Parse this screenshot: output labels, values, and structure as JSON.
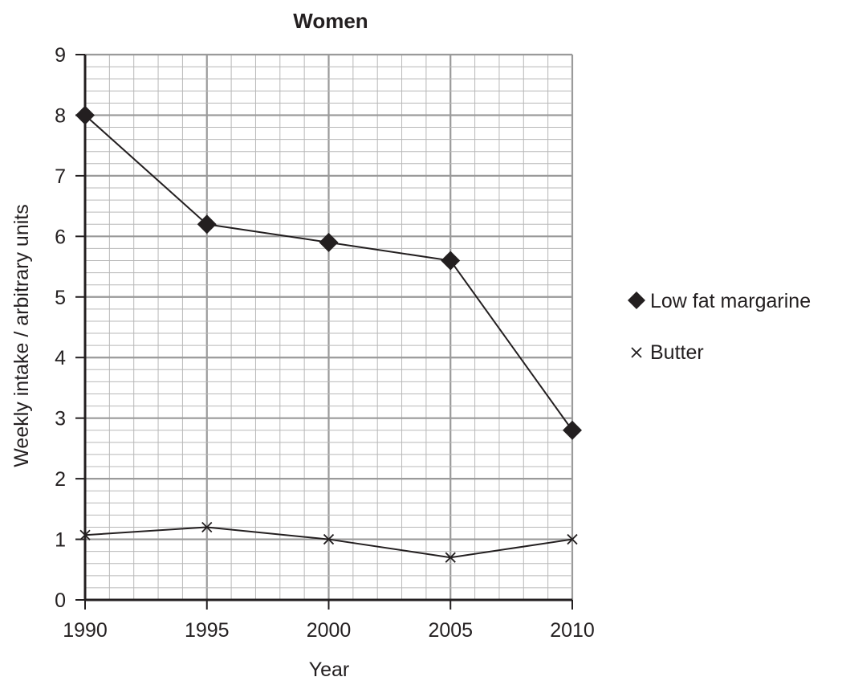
{
  "chart_data": {
    "type": "line",
    "title": "Women",
    "xlabel": "Year",
    "ylabel": "Weekly intake / arbitrary units",
    "x": [
      1990,
      1995,
      2000,
      2005,
      2010
    ],
    "xlim": [
      1990,
      2010
    ],
    "ylim": [
      0,
      9
    ],
    "x_ticks": [
      "1990",
      "1995",
      "2000",
      "2005",
      "2010"
    ],
    "y_ticks": [
      "0",
      "1",
      "2",
      "3",
      "4",
      "5",
      "6",
      "7",
      "8",
      "9"
    ],
    "grid": true,
    "legend_position": "right",
    "series": [
      {
        "name": "Low fat margarine",
        "marker": "diamond",
        "legend_symbol": "◆",
        "values": [
          8.0,
          6.2,
          5.9,
          5.6,
          2.8
        ]
      },
      {
        "name": "Butter",
        "marker": "cross",
        "legend_symbol": "×",
        "values": [
          1.07,
          1.2,
          1.0,
          0.7,
          1.0
        ]
      }
    ]
  }
}
